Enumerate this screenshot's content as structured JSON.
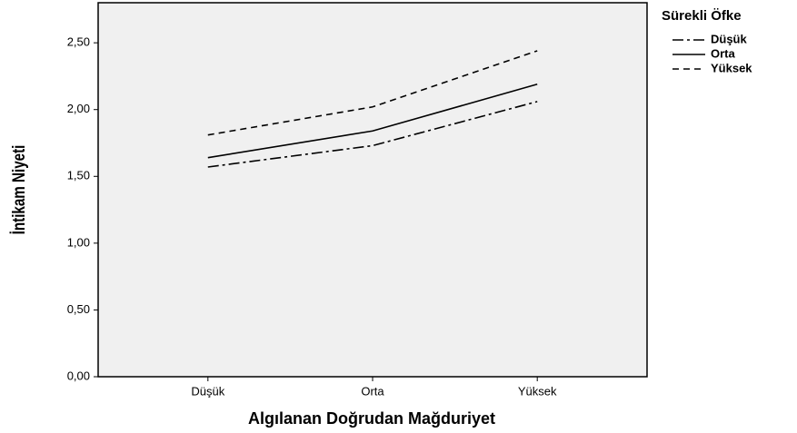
{
  "chart_data": {
    "type": "line",
    "x_label": "Algılanan Doğrudan Mağduriyet",
    "y_label": "İntikam Niyeti",
    "legend_title": "Sürekli Öfke",
    "categories": [
      "Düşük",
      "Orta",
      "Yüksek"
    ],
    "series": [
      {
        "name": "Düşük",
        "color": "#000000",
        "line_style": "dashdot",
        "values": [
          1.57,
          1.73,
          2.06
        ]
      },
      {
        "name": "Orta",
        "color": "#000000",
        "line_style": "solid",
        "values": [
          1.64,
          1.84,
          2.19
        ]
      },
      {
        "name": "Yüksek",
        "color": "#000000",
        "line_style": "dashed",
        "values": [
          1.81,
          2.02,
          2.44
        ]
      }
    ],
    "ylim": [
      0,
      2.8
    ],
    "yticks": [
      {
        "value": 0,
        "label": "0,00"
      },
      {
        "value": 0.5,
        "label": "0,50"
      },
      {
        "value": 1,
        "label": "1,00"
      },
      {
        "value": 1.5,
        "label": "1,50"
      },
      {
        "value": 2,
        "label": "2,00"
      },
      {
        "value": 2.5,
        "label": "2,50"
      }
    ],
    "legend_position": "right"
  }
}
